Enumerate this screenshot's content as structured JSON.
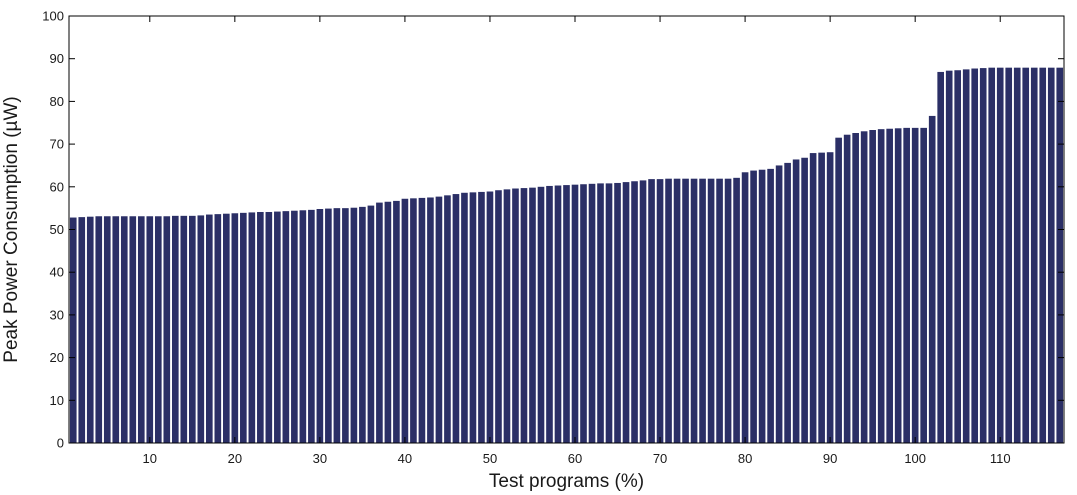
{
  "chart_data": {
    "type": "bar",
    "title": "",
    "xlabel": "Test programs (%)",
    "ylabel": "Peak Power Consumption (µW)",
    "xlim": [
      0.5,
      117.5
    ],
    "ylim": [
      0,
      100
    ],
    "xticks": [
      10,
      20,
      30,
      40,
      50,
      60,
      70,
      80,
      90,
      100,
      110
    ],
    "yticks": [
      0,
      10,
      20,
      30,
      40,
      50,
      60,
      70,
      80,
      90,
      100
    ],
    "grid": false,
    "bar_color": "#2b2f66",
    "x": [
      1,
      2,
      3,
      4,
      5,
      6,
      7,
      8,
      9,
      10,
      11,
      12,
      13,
      14,
      15,
      16,
      17,
      18,
      19,
      20,
      21,
      22,
      23,
      24,
      25,
      26,
      27,
      28,
      29,
      30,
      31,
      32,
      33,
      34,
      35,
      36,
      37,
      38,
      39,
      40,
      41,
      42,
      43,
      44,
      45,
      46,
      47,
      48,
      49,
      50,
      51,
      52,
      53,
      54,
      55,
      56,
      57,
      58,
      59,
      60,
      61,
      62,
      63,
      64,
      65,
      66,
      67,
      68,
      69,
      70,
      71,
      72,
      73,
      74,
      75,
      76,
      77,
      78,
      79,
      80,
      81,
      82,
      83,
      84,
      85,
      86,
      87,
      88,
      89,
      90,
      91,
      92,
      93,
      94,
      95,
      96,
      97,
      98,
      99,
      100,
      101,
      102,
      103,
      104,
      105,
      106,
      107,
      108,
      109,
      110,
      111,
      112,
      113,
      114,
      115,
      116,
      117
    ],
    "values": [
      52.8,
      52.9,
      53.0,
      53.1,
      53.1,
      53.1,
      53.1,
      53.1,
      53.1,
      53.1,
      53.1,
      53.1,
      53.2,
      53.2,
      53.2,
      53.3,
      53.5,
      53.6,
      53.7,
      53.8,
      53.9,
      54.0,
      54.1,
      54.1,
      54.2,
      54.3,
      54.4,
      54.5,
      54.6,
      54.8,
      54.9,
      55.0,
      55.0,
      55.1,
      55.3,
      55.6,
      56.3,
      56.5,
      56.7,
      57.2,
      57.3,
      57.4,
      57.5,
      57.7,
      58.0,
      58.3,
      58.6,
      58.7,
      58.8,
      58.9,
      59.2,
      59.4,
      59.6,
      59.7,
      59.8,
      60.0,
      60.2,
      60.3,
      60.4,
      60.5,
      60.6,
      60.7,
      60.8,
      60.8,
      60.9,
      61.1,
      61.3,
      61.5,
      61.8,
      61.8,
      61.9,
      61.9,
      61.9,
      61.9,
      61.9,
      61.9,
      61.9,
      61.9,
      62.1,
      63.4,
      63.8,
      64.0,
      64.2,
      65.0,
      65.6,
      66.4,
      66.8,
      67.9,
      68.0,
      68.1,
      71.5,
      72.2,
      72.6,
      73.0,
      73.3,
      73.5,
      73.6,
      73.7,
      73.8,
      73.8,
      73.8,
      76.6,
      86.9,
      87.2,
      87.3,
      87.5,
      87.7,
      87.8,
      87.9,
      87.9,
      87.9,
      87.9,
      87.9,
      87.9,
      87.9,
      87.9,
      87.9
    ]
  }
}
